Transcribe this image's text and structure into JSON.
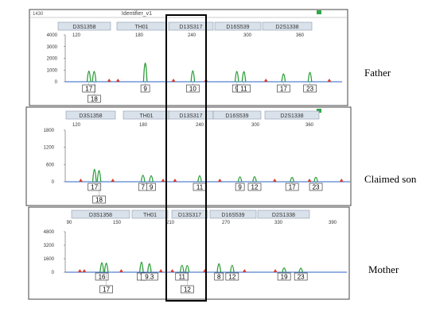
{
  "window_title": "Identifier_v1",
  "window_number": "1430",
  "highlight_locus": "D13S317",
  "colors": {
    "peak": "#2e9e3a",
    "artifact": "#d93a2b",
    "axis": "#2a63c8",
    "marker_tab": "#d9e1ea",
    "highlight": "#000000"
  },
  "panels": [
    {
      "label": "Father",
      "markers": [
        "D3S1358",
        "TH01",
        "D13S317",
        "D16S539",
        "D2S1338"
      ],
      "x_ticks": [
        "120",
        "180",
        "240",
        "300",
        "360"
      ],
      "y_ticks": [
        "4000",
        "3000",
        "2000",
        "1000",
        "0"
      ],
      "ylim": [
        0,
        4500
      ],
      "alleles": [
        {
          "label": "17",
          "row": 1,
          "x": 117,
          "height": 1750
        },
        {
          "label": "18",
          "row": 2,
          "x": 123,
          "height": 1700
        },
        {
          "label": "9",
          "row": 1,
          "x": 181,
          "height": 3300
        },
        {
          "label": "10",
          "row": 1,
          "x": 235,
          "height": 1800
        },
        {
          "label": "9",
          "row": 1,
          "x": 285,
          "height": 1700
        },
        {
          "label": "11",
          "row": 1,
          "x": 293,
          "height": 1650
        },
        {
          "label": "17",
          "row": 1,
          "x": 338,
          "height": 1200
        },
        {
          "label": "23",
          "row": 1,
          "x": 368,
          "height": 1500
        }
      ],
      "artifacts": [
        140,
        150,
        213,
        250,
        318,
        390
      ]
    },
    {
      "label": "Claimed son",
      "markers": [
        "D3S1358",
        "TH01",
        "D13S317",
        "D16S539",
        "D2S1338"
      ],
      "x_ticks": [
        "120",
        "180",
        "240",
        "300",
        "360"
      ],
      "y_ticks": [
        "1800",
        "1200",
        "600",
        "0"
      ],
      "ylim": [
        0,
        1800
      ],
      "alleles": [
        {
          "label": "17",
          "row": 1,
          "x": 125,
          "height": 760
        },
        {
          "label": "18",
          "row": 2,
          "x": 130,
          "height": 680
        },
        {
          "label": "7",
          "row": 1,
          "x": 178,
          "height": 340
        },
        {
          "label": "9",
          "row": 1,
          "x": 187,
          "height": 300
        },
        {
          "label": "11",
          "row": 1,
          "x": 240,
          "height": 300
        },
        {
          "label": "9",
          "row": 1,
          "x": 284,
          "height": 230
        },
        {
          "label": "12",
          "row": 1,
          "x": 300,
          "height": 240
        },
        {
          "label": "17",
          "row": 1,
          "x": 341,
          "height": 190
        },
        {
          "label": "23",
          "row": 1,
          "x": 367,
          "height": 200
        }
      ],
      "artifacts": [
        110,
        145,
        200,
        213,
        262,
        322,
        360,
        395
      ]
    },
    {
      "label": "Mother",
      "markers": [
        "D3S1358",
        "TH01",
        "D13S317",
        "D16S539",
        "D2S1338"
      ],
      "x_ticks": [
        "90",
        "150",
        "210",
        "270",
        "330",
        "390"
      ],
      "y_ticks": [
        "4800",
        "3200",
        "1600",
        "0"
      ],
      "ylim": [
        0,
        5000
      ],
      "alleles": [
        {
          "label": "16",
          "row": 1,
          "x": 128,
          "height": 1950
        },
        {
          "label": "17",
          "row": 2,
          "x": 133,
          "height": 1850
        },
        {
          "label": "7",
          "row": 1,
          "x": 173,
          "height": 2100
        },
        {
          "label": "9.3",
          "row": 1,
          "x": 182,
          "height": 1700
        },
        {
          "label": "11",
          "row": 1,
          "x": 219,
          "height": 1300
        },
        {
          "label": "12",
          "row": 2,
          "x": 225,
          "height": 1250
        },
        {
          "label": "8",
          "row": 1,
          "x": 261,
          "height": 1700
        },
        {
          "label": "12",
          "row": 1,
          "x": 276,
          "height": 1300
        },
        {
          "label": "19",
          "row": 1,
          "x": 335,
          "height": 650
        },
        {
          "label": "23",
          "row": 1,
          "x": 354,
          "height": 600
        }
      ],
      "artifacts": [
        103,
        108,
        150,
        195,
        208,
        245,
        290,
        325
      ]
    }
  ],
  "chart_data": {
    "type": "line",
    "title": "Identifier_v1",
    "xlabel": "",
    "ylabel": "",
    "loci": [
      "D3S1358",
      "TH01",
      "D13S317",
      "D16S539",
      "D2S1338"
    ],
    "series": [
      {
        "name": "Father",
        "alleles": {
          "D3S1358": [
            "17",
            "18"
          ],
          "TH01": [
            "9"
          ],
          "D13S317": [
            "10"
          ],
          "D16S539": [
            "9",
            "11"
          ],
          "D2S1338": [
            "17",
            "23"
          ]
        }
      },
      {
        "name": "Claimed son",
        "alleles": {
          "D3S1358": [
            "17",
            "18"
          ],
          "TH01": [
            "7",
            "9"
          ],
          "D13S317": [
            "11"
          ],
          "D16S539": [
            "9",
            "12"
          ],
          "D2S1338": [
            "17",
            "23"
          ]
        }
      },
      {
        "name": "Mother",
        "alleles": {
          "D3S1358": [
            "16",
            "17"
          ],
          "TH01": [
            "7",
            "9.3"
          ],
          "D13S317": [
            "11",
            "12"
          ],
          "D16S539": [
            "8",
            "12"
          ],
          "D2S1338": [
            "19",
            "23"
          ]
        }
      }
    ]
  }
}
